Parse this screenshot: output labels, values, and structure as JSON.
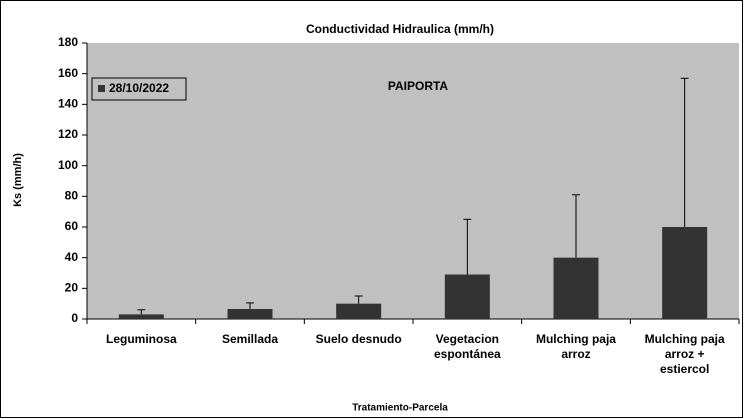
{
  "chart_data": {
    "type": "bar",
    "title": "Conductividad Hidraulica (mm/h)",
    "annotation": "PAIPORTA",
    "x_label": "Tratamiento-Parcela",
    "y_label": "Ks (mm/h)",
    "categories": [
      "Leguminosa",
      "Semillada",
      "Suelo desnudo",
      "Vegetacion\nespontánea",
      "Mulching paja\narroz",
      "Mulching paja\narroz +\nestiercol"
    ],
    "series": [
      {
        "name": "28/10/2022",
        "color": "#333333",
        "values": [
          3,
          6.5,
          10,
          29,
          40,
          60
        ],
        "errors": [
          3,
          4,
          5,
          36,
          41,
          97
        ]
      }
    ],
    "ylim": [
      0,
      180
    ],
    "yticks": [
      0,
      20,
      40,
      60,
      80,
      100,
      120,
      140,
      160,
      180
    ],
    "grid": false,
    "legend": "upper-left"
  }
}
